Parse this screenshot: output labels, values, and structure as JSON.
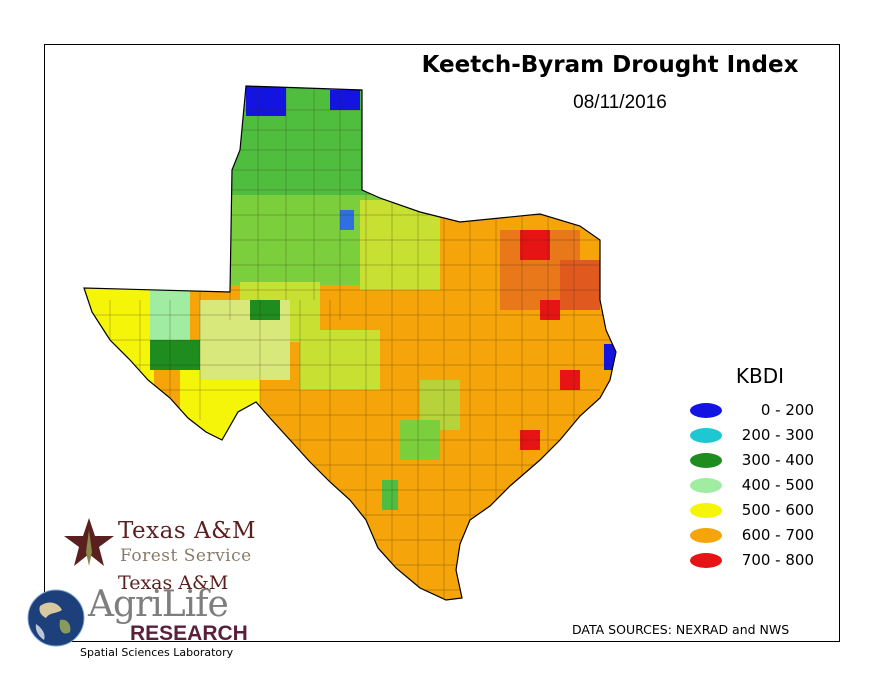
{
  "map": {
    "title": "Keetch-Byram Drought Index",
    "date": "08/11/2016",
    "data_sources": "DATA SOURCES: NEXRAD and NWS"
  },
  "legend": {
    "title": "KBDI",
    "items": [
      {
        "label": "0 - 200",
        "color": "#1414e0"
      },
      {
        "label": "200 - 300",
        "color": "#1ec8d2"
      },
      {
        "label": "300 - 400",
        "color": "#1e8c1e"
      },
      {
        "label": "400 - 500",
        "color": "#a0eca0"
      },
      {
        "label": "500 - 600",
        "color": "#f5f50a"
      },
      {
        "label": "600 - 700",
        "color": "#f5a50a"
      },
      {
        "label": "700 - 800",
        "color": "#e61414"
      }
    ]
  },
  "logos": {
    "tfs_line1": "Texas A&M",
    "tfs_line2": "Forest Service",
    "agri_line1": "Texas A&M",
    "agri_line2": "AgriLife",
    "agri_line3": "RESEARCH",
    "lab": "Spatial Sciences Laboratory"
  }
}
